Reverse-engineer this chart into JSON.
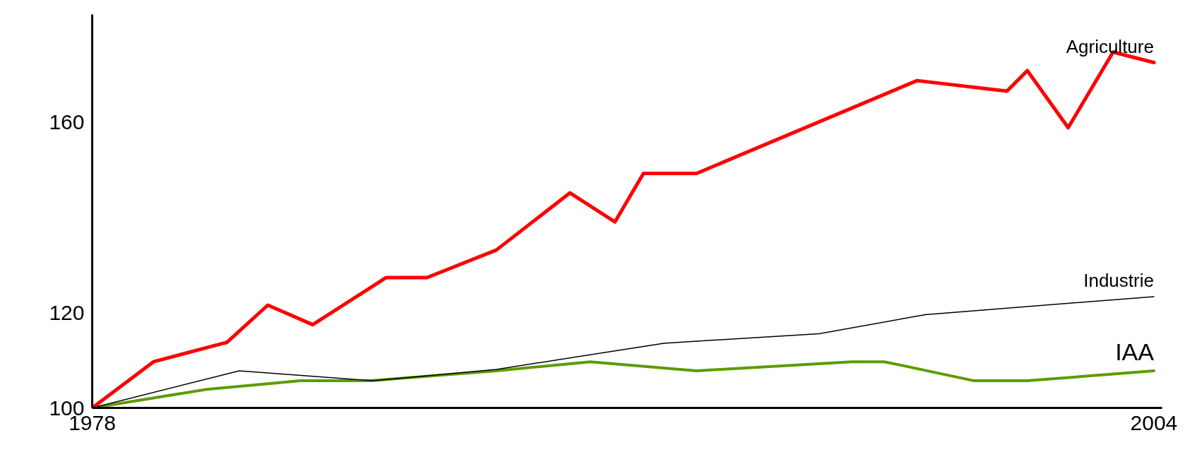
{
  "chart_data": {
    "type": "line",
    "xlim": [
      1978,
      2004.2
    ],
    "ylim": [
      100,
      182.7
    ],
    "xticks": [
      1978,
      2004
    ],
    "yticks": [
      100,
      120,
      160
    ],
    "grid": false,
    "marker": "none",
    "line_style": "solid",
    "series": [
      {
        "name": "Agriculture",
        "color": "#ff0000",
        "x": [
          1978,
          1979.5,
          1981.3,
          1982.3,
          1983.4,
          1985.2,
          1986.2,
          1987.9,
          1989.7,
          1990.8,
          1991.5,
          1992.8,
          1998.2,
          2000.4,
          2000.9,
          2001.9,
          2003.0,
          2004.0
        ],
        "values": [
          100,
          109.7,
          113.8,
          121.6,
          117.5,
          127.4,
          127.4,
          133.2,
          145.2,
          139.1,
          149.3,
          149.3,
          168.8,
          166.6,
          170.9,
          158.9,
          174.8,
          172.6
        ]
      },
      {
        "name": "Industrie",
        "color": "#000000",
        "x": [
          1978,
          1981.6,
          1984.9,
          1987.9,
          1992.0,
          1995.8,
          1998.4,
          2004.0
        ],
        "values": [
          100,
          107.8,
          105.7,
          108.1,
          113.6,
          115.6,
          119.6,
          123.4
        ]
      },
      {
        "name": "IAA",
        "color": "#5c9c00",
        "x": [
          1978,
          1980.8,
          1983.1,
          1984.8,
          1987.9,
          1990.2,
          1992.8,
          1996.6,
          1997.4,
          1999.6,
          2000.9,
          2004.0
        ],
        "values": [
          100,
          103.9,
          105.7,
          105.7,
          107.8,
          109.7,
          107.8,
          109.7,
          109.7,
          105.7,
          105.7,
          107.8
        ]
      }
    ]
  }
}
